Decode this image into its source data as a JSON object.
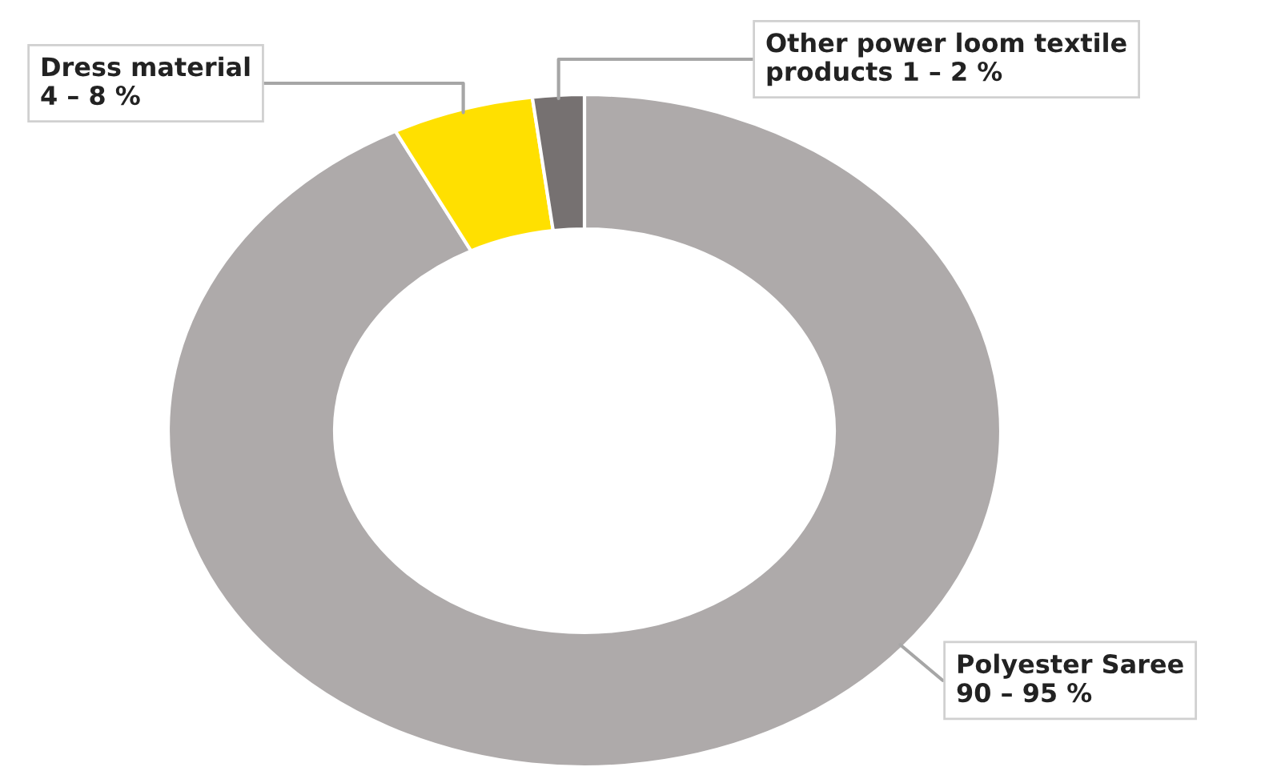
{
  "chart_data": {
    "type": "donut",
    "categories": [
      "Polyester Saree",
      "Dress material",
      "Other power loom textile\nproducts"
    ],
    "values": [
      92.5,
      5.5,
      2.0
    ],
    "colors": [
      "#aeaaaa",
      "#ffe000",
      "#767171"
    ],
    "annotations": [
      "90 – 95 %",
      "4 – 8 %",
      "1 – 2 %"
    ]
  }
}
